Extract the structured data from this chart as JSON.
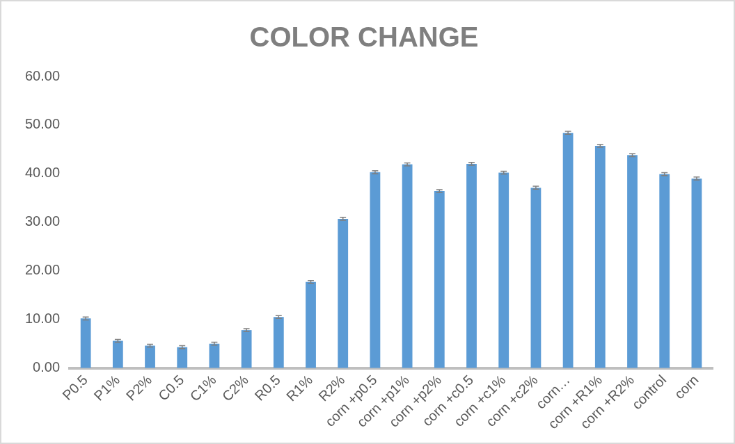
{
  "chart_data": {
    "type": "bar",
    "title": "COLOR CHANGE",
    "categories": [
      "P0.5",
      "P1%",
      "P2%",
      "C0.5",
      "C1%",
      "C2%",
      "R0.5",
      "R1%",
      "R2%",
      "corn +p0.5",
      "corn +p1%",
      "corn +p2%",
      "corn +c0.5",
      "corn +c1%",
      "corn +c2%",
      "corn…",
      "corn +R1%",
      "corn +R2%",
      "control",
      "corn"
    ],
    "series": [
      {
        "color": "#5b9bd5",
        "values": [
          10.2,
          5.6,
          4.6,
          4.3,
          5.0,
          7.8,
          10.5,
          17.7,
          30.7,
          40.3,
          41.9,
          36.4,
          42.0,
          40.2,
          37.1,
          48.4,
          45.7,
          43.8,
          39.9,
          39.0
        ],
        "errors": [
          0.3,
          0.3,
          0.3,
          0.3,
          0.3,
          0.3,
          0.3,
          0.3,
          0.3,
          0.3,
          0.3,
          0.3,
          0.3,
          0.3,
          0.3,
          0.3,
          0.3,
          0.3,
          0.3,
          0.3
        ]
      }
    ],
    "ylim": [
      0,
      60
    ],
    "yticks": [
      {
        "value": 0,
        "label": "0.00"
      },
      {
        "value": 10,
        "label": "10.00"
      },
      {
        "value": 20,
        "label": "20.00"
      },
      {
        "value": 30,
        "label": "30.00"
      },
      {
        "value": 40,
        "label": "40.00"
      },
      {
        "value": 50,
        "label": "50.00"
      },
      {
        "value": 60,
        "label": "60.00"
      }
    ],
    "grid": false,
    "legend": false
  }
}
